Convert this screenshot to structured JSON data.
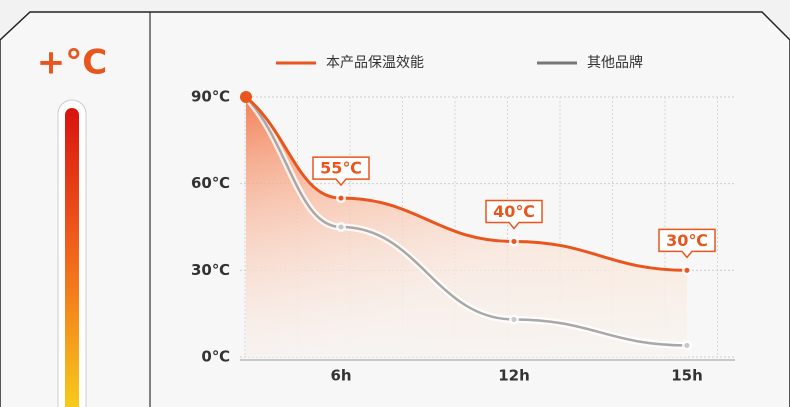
{
  "chart_data": {
    "type": "line",
    "categories": [
      null,
      "6h",
      "12h",
      "15h"
    ],
    "series": [
      {
        "name": "本产品保温效能",
        "color": "#e8561e",
        "values": [
          90,
          55,
          40,
          30
        ],
        "value_labels": [
          null,
          "55℃",
          "40℃",
          "30℃"
        ]
      },
      {
        "name": "其他品牌",
        "color": "#a8a8a8",
        "values": [
          90,
          45,
          13,
          4
        ]
      }
    ],
    "ylim": [
      0,
      90
    ],
    "yticks": [
      {
        "value": 0,
        "label": "0℃"
      },
      {
        "value": 30,
        "label": "30℃"
      },
      {
        "value": 60,
        "label": "60℃"
      },
      {
        "value": 90,
        "label": "90℃"
      }
    ],
    "grid": true,
    "icon_text": "+°C"
  }
}
